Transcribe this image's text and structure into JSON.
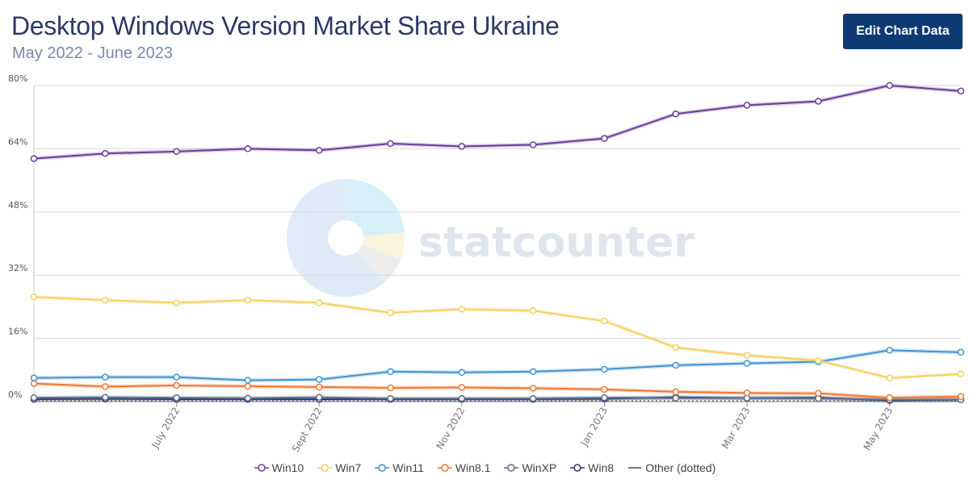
{
  "header": {
    "title": "Desktop Windows Version Market Share Ukraine",
    "subtitle": "May 2022 - June 2023",
    "edit_button_label": "Edit Chart Data"
  },
  "watermark": {
    "text": "statcounter"
  },
  "chart_data": {
    "type": "line",
    "x": [
      "2022-05",
      "2022-06",
      "2022-07",
      "2022-08",
      "2022-09",
      "2022-10",
      "2022-11",
      "2022-12",
      "2023-01",
      "2023-02",
      "2023-03",
      "2023-04",
      "2023-05",
      "2023-06"
    ],
    "x_tick_labels": [
      {
        "index": 2,
        "label": "July 2022"
      },
      {
        "index": 4,
        "label": "Sept 2022"
      },
      {
        "index": 6,
        "label": "Nov 2022"
      },
      {
        "index": 8,
        "label": "Jan 2023"
      },
      {
        "index": 10,
        "label": "Mar 2023"
      },
      {
        "index": 12,
        "label": "May 2023"
      }
    ],
    "ylim": [
      0,
      80
    ],
    "y_ticks": [
      0,
      16,
      32,
      48,
      64,
      80
    ],
    "y_tick_labels": [
      "0%",
      "16%",
      "32%",
      "48%",
      "64%",
      "80%"
    ],
    "grid": true,
    "legend_position": "bottom",
    "series": [
      {
        "name": "Win10",
        "color": "#6a3d9a",
        "values": [
          61.5,
          62.8,
          63.3,
          64.0,
          63.6,
          65.3,
          64.6,
          65.0,
          66.6,
          72.8,
          75.0,
          76.0,
          80.0,
          78.6
        ]
      },
      {
        "name": "Win7",
        "color": "#f4d160",
        "values": [
          26.5,
          25.7,
          25.0,
          25.7,
          25.0,
          22.5,
          23.4,
          23.0,
          20.4,
          13.7,
          11.7,
          10.4,
          6.0,
          7.0
        ]
      },
      {
        "name": "Win11",
        "color": "#3f94d4",
        "values": [
          6.0,
          6.2,
          6.2,
          5.4,
          5.6,
          7.6,
          7.4,
          7.6,
          8.2,
          9.2,
          9.7,
          10.1,
          13.0,
          12.5
        ]
      },
      {
        "name": "Win8.1",
        "color": "#f07830",
        "values": [
          4.6,
          3.8,
          4.1,
          3.9,
          3.7,
          3.5,
          3.6,
          3.4,
          3.1,
          2.5,
          2.2,
          2.1,
          1.0,
          1.3
        ]
      },
      {
        "name": "WinXP",
        "color": "#5b6f8c",
        "values": [
          1.0,
          1.1,
          1.0,
          0.9,
          1.1,
          0.8,
          0.8,
          0.8,
          1.0,
          0.9,
          0.9,
          0.8,
          0.5,
          0.5
        ]
      },
      {
        "name": "Win8",
        "color": "#2b3470",
        "values": [
          0.6,
          0.7,
          0.6,
          0.6,
          0.6,
          0.6,
          0.6,
          0.6,
          0.7,
          1.1,
          0.9,
          1.0,
          0.3,
          0.5
        ]
      },
      {
        "name": "Other (dotted)",
        "color": "#777777",
        "dotted": true,
        "values": [
          0.2,
          0.2,
          0.2,
          0.2,
          0.2,
          0.2,
          0.2,
          0.2,
          0.2,
          0.2,
          0.2,
          0.2,
          0.2,
          0.2
        ]
      }
    ]
  }
}
